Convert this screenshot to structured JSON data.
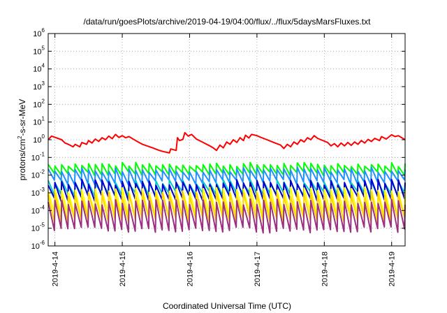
{
  "chart_data": {
    "type": "line",
    "title": "/data/run/goesPlots/archive/2019-04-19/04:00/flux/../flux/5daysMarsFluxes.txt",
    "xlabel": "Coordinated Universal Time (UTC)",
    "ylabel": {
      "prefix": "protons/cm",
      "sup": "2",
      "suffix": "-s-sr-MeV"
    },
    "yscale": "log",
    "ylim_exp": [
      -6,
      6
    ],
    "yticks": [
      {
        "base": "10",
        "exp": "-6"
      },
      {
        "base": "10",
        "exp": "-5"
      },
      {
        "base": "10",
        "exp": "-4"
      },
      {
        "base": "10",
        "exp": "-3"
      },
      {
        "base": "10",
        "exp": "-2"
      },
      {
        "base": "10",
        "exp": "-1"
      },
      {
        "base": "10",
        "exp": "0"
      },
      {
        "base": "10",
        "exp": "1"
      },
      {
        "base": "10",
        "exp": "2"
      },
      {
        "base": "10",
        "exp": "3"
      },
      {
        "base": "10",
        "exp": "4"
      },
      {
        "base": "10",
        "exp": "5"
      },
      {
        "base": "10",
        "exp": "6"
      }
    ],
    "xlim_days": [
      -0.1,
      5.2
    ],
    "xticks": [
      {
        "label": "2019-4-14",
        "day": 0
      },
      {
        "label": "2019-4-15",
        "day": 1
      },
      {
        "label": "2019-4-16",
        "day": 2
      },
      {
        "label": "2019-4-17",
        "day": 3
      },
      {
        "label": "2019-4-18",
        "day": 4
      },
      {
        "label": "2019-4-19",
        "day": 5
      }
    ],
    "grid": true,
    "series": [
      {
        "color": "#ff0000",
        "pattern": "smooth",
        "points": [
          [
            -0.1,
            1.0
          ],
          [
            -0.05,
            1.6
          ],
          [
            0.1,
            1.0
          ],
          [
            0.15,
            0.65
          ],
          [
            0.2,
            0.55
          ],
          [
            0.27,
            0.4
          ],
          [
            0.3,
            0.55
          ],
          [
            0.37,
            0.4
          ],
          [
            0.4,
            0.7
          ],
          [
            0.47,
            0.55
          ],
          [
            0.5,
            0.9
          ],
          [
            0.55,
            0.65
          ],
          [
            0.6,
            1.1
          ],
          [
            0.65,
            0.8
          ],
          [
            0.7,
            1.3
          ],
          [
            0.75,
            1.0
          ],
          [
            0.8,
            1.6
          ],
          [
            0.85,
            1.15
          ],
          [
            0.9,
            2.0
          ],
          [
            0.95,
            1.35
          ],
          [
            1.0,
            1.7
          ],
          [
            1.05,
            1.3
          ],
          [
            1.1,
            1.5
          ],
          [
            1.2,
            0.9
          ],
          [
            1.3,
            0.55
          ],
          [
            1.45,
            0.35
          ],
          [
            1.55,
            0.25
          ],
          [
            1.6,
            0.22
          ],
          [
            1.7,
            0.18
          ],
          [
            1.72,
            0.3
          ],
          [
            1.8,
            0.25
          ],
          [
            1.82,
            1.3
          ],
          [
            1.85,
            0.9
          ],
          [
            1.9,
            1.05
          ],
          [
            1.93,
            2.5
          ],
          [
            1.98,
            1.6
          ],
          [
            2.03,
            2.0
          ],
          [
            2.1,
            1.1
          ],
          [
            2.2,
            0.7
          ],
          [
            2.3,
            0.45
          ],
          [
            2.35,
            0.35
          ],
          [
            2.4,
            0.25
          ],
          [
            2.45,
            0.5
          ],
          [
            2.5,
            0.35
          ],
          [
            2.55,
            0.75
          ],
          [
            2.6,
            0.55
          ],
          [
            2.65,
            1.0
          ],
          [
            2.7,
            0.7
          ],
          [
            2.75,
            1.3
          ],
          [
            2.8,
            0.9
          ],
          [
            2.83,
            1.8
          ],
          [
            2.88,
            1.25
          ],
          [
            2.92,
            2.0
          ],
          [
            3.0,
            1.7
          ],
          [
            3.05,
            1.4
          ],
          [
            3.15,
            1.0
          ],
          [
            3.25,
            0.7
          ],
          [
            3.35,
            0.5
          ],
          [
            3.4,
            0.32
          ],
          [
            3.45,
            0.55
          ],
          [
            3.5,
            0.4
          ],
          [
            3.55,
            0.75
          ],
          [
            3.6,
            0.55
          ],
          [
            3.65,
            1.0
          ],
          [
            3.7,
            0.75
          ],
          [
            3.75,
            1.3
          ],
          [
            3.8,
            1.0
          ],
          [
            3.85,
            1.7
          ],
          [
            3.9,
            1.2
          ],
          [
            3.95,
            1.0
          ],
          [
            4.05,
            0.7
          ],
          [
            4.1,
            0.45
          ],
          [
            4.15,
            0.6
          ],
          [
            4.2,
            0.4
          ],
          [
            4.25,
            0.65
          ],
          [
            4.3,
            0.45
          ],
          [
            4.35,
            0.7
          ],
          [
            4.4,
            0.48
          ],
          [
            4.45,
            0.75
          ],
          [
            4.5,
            0.55
          ],
          [
            4.55,
            0.9
          ],
          [
            4.6,
            0.65
          ],
          [
            4.65,
            1.05
          ],
          [
            4.7,
            0.8
          ],
          [
            4.75,
            1.2
          ],
          [
            4.82,
            0.9
          ],
          [
            4.85,
            1.5
          ],
          [
            4.92,
            1.1
          ],
          [
            5.0,
            1.9
          ],
          [
            5.05,
            1.5
          ],
          [
            5.1,
            1.7
          ],
          [
            5.15,
            1.3
          ],
          [
            5.2,
            1.0
          ]
        ]
      },
      {
        "color": "#00ff00",
        "pattern": "sawtooth",
        "low": 0.012,
        "high": 0.04,
        "period": 0.1,
        "jitter": 0.25
      },
      {
        "color": "#1e90ff",
        "pattern": "sawtooth",
        "low": 0.004,
        "high": 0.02,
        "period": 0.1,
        "jitter": 0.3
      },
      {
        "color": "#00cccc",
        "pattern": "sawtooth",
        "low": 0.0009,
        "high": 0.004,
        "period": 0.1,
        "jitter": 0.3
      },
      {
        "color": "#0000cd",
        "pattern": "sawtooth",
        "low": 0.0005,
        "high": 0.004,
        "period": 0.1,
        "jitter": 0.35
      },
      {
        "color": "#ffff00",
        "pattern": "sawtooth",
        "low": 6e-05,
        "high": 0.0015,
        "period": 0.1,
        "jitter": 0.3
      },
      {
        "color": "#ffd700",
        "pattern": "sawtooth",
        "low": 3e-05,
        "high": 0.0008,
        "period": 0.1,
        "jitter": 0.3
      },
      {
        "color": "#9b3080",
        "pattern": "sawtooth",
        "low": 8e-06,
        "high": 0.0003,
        "period": 0.1,
        "jitter": 0.35
      }
    ]
  }
}
